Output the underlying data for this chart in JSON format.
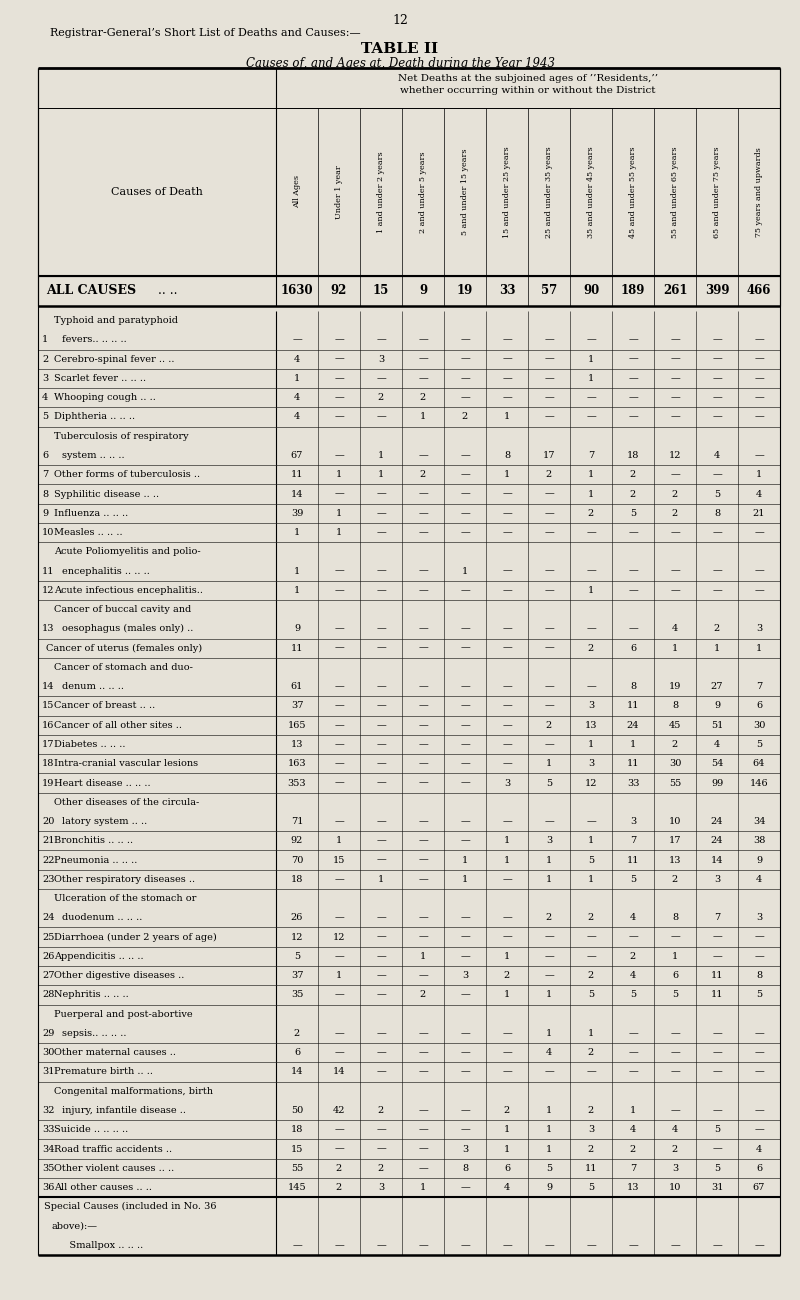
{
  "page_number": "12",
  "title_line1": "Registrar-General’s Short List of Deaths and Causes:—",
  "title_line2": "TABLE II",
  "title_line3": "Causes of, and Ages at, Death during the Year 1943",
  "col_headers": [
    "All Ages",
    "Under 1 year",
    "1 and under 2 years",
    "2 and under 5 years",
    "5 and under 15 years",
    "15 and under 25 years",
    "25 and under 35 years",
    "35 and under 45 years",
    "45 and under 55 years",
    "55 and under 65 years",
    "65 and under 75 years",
    "75 years and upwards"
  ],
  "all_causes": [
    "1630",
    "92",
    "15",
    "9",
    "19",
    "33",
    "57",
    "90",
    "189",
    "261",
    "399",
    "466"
  ],
  "rows": [
    {
      "num": "1",
      "label": [
        "Typhoid and paratyphoid",
        "fevers.. .. .. .."
      ],
      "data": [
        "—",
        "—",
        "—",
        "—",
        "—",
        "—",
        "—",
        "—",
        "—",
        "—",
        "—",
        "—"
      ],
      "data_line": 1
    },
    {
      "num": "2",
      "label": [
        "Cerebro-spinal fever .. .."
      ],
      "data": [
        "4",
        "—",
        "3",
        "—",
        "—",
        "—",
        "—",
        "1",
        "—",
        "—",
        "—",
        "—"
      ],
      "data_line": 0
    },
    {
      "num": "3",
      "label": [
        "Scarlet fever .. .. .."
      ],
      "data": [
        "1",
        "—",
        "—",
        "—",
        "—",
        "—",
        "—",
        "1",
        "—",
        "—",
        "—",
        "—"
      ],
      "data_line": 0
    },
    {
      "num": "4",
      "label": [
        "Whooping cough .. .."
      ],
      "data": [
        "4",
        "—",
        "2",
        "2",
        "—",
        "—",
        "—",
        "—",
        "—",
        "—",
        "—",
        "—"
      ],
      "data_line": 0
    },
    {
      "num": "5",
      "label": [
        "Diphtheria .. .. .."
      ],
      "data": [
        "4",
        "—",
        "—",
        "1",
        "2",
        "1",
        "—",
        "—",
        "—",
        "—",
        "—",
        "—"
      ],
      "data_line": 0
    },
    {
      "num": "6",
      "label": [
        "Tuberculosis of respiratory",
        "system .. .. .."
      ],
      "data": [
        "67",
        "—",
        "1",
        "—",
        "—",
        "8",
        "17",
        "7",
        "18",
        "12",
        "4",
        "—"
      ],
      "data_line": 1
    },
    {
      "num": "7",
      "label": [
        "Other forms of tuberculosis .."
      ],
      "data": [
        "11",
        "1",
        "1",
        "2",
        "—",
        "1",
        "2",
        "1",
        "2",
        "—",
        "—",
        "1"
      ],
      "data_line": 0
    },
    {
      "num": "8",
      "label": [
        "Syphilitic disease .. .."
      ],
      "data": [
        "14",
        "—",
        "—",
        "—",
        "—",
        "—",
        "—",
        "1",
        "2",
        "2",
        "5",
        "4"
      ],
      "data_line": 0
    },
    {
      "num": "9",
      "label": [
        "Influenza .. .. .."
      ],
      "data": [
        "39",
        "1",
        "—",
        "—",
        "—",
        "—",
        "—",
        "2",
        "5",
        "2",
        "8",
        "21"
      ],
      "data_line": 0
    },
    {
      "num": "10",
      "label": [
        "Measles .. .. .."
      ],
      "data": [
        "1",
        "1",
        "—",
        "—",
        "—",
        "—",
        "—",
        "—",
        "—",
        "—",
        "—",
        "—"
      ],
      "data_line": 0
    },
    {
      "num": "11",
      "label": [
        "Acute Poliomyelitis and polio-",
        "encephalitis .. .. .."
      ],
      "data": [
        "1",
        "—",
        "—",
        "—",
        "1",
        "—",
        "—",
        "—",
        "—",
        "—",
        "—",
        "—"
      ],
      "data_line": 1
    },
    {
      "num": "12",
      "label": [
        "Acute infectious encephalitis.."
      ],
      "data": [
        "1",
        "—",
        "—",
        "—",
        "—",
        "—",
        "—",
        "1",
        "—",
        "—",
        "—",
        "—"
      ],
      "data_line": 0
    },
    {
      "num": "13",
      "label": [
        "Cancer of buccal cavity and",
        "oesophagus (males only) .."
      ],
      "data": [
        "9",
        "—",
        "—",
        "—",
        "—",
        "—",
        "—",
        "—",
        "—",
        "4",
        "2",
        "3"
      ],
      "data_line": 1
    },
    {
      "num": "",
      "label": [
        "Cancer of uterus (females only)"
      ],
      "data": [
        "11",
        "—",
        "—",
        "—",
        "—",
        "—",
        "—",
        "2",
        "6",
        "1",
        "1",
        "1"
      ],
      "data_line": 0
    },
    {
      "num": "14",
      "label": [
        "Cancer of stomach and duo-",
        "denum .. .. .."
      ],
      "data": [
        "61",
        "—",
        "—",
        "—",
        "—",
        "—",
        "—",
        "—",
        "8",
        "19",
        "27",
        "7"
      ],
      "data_line": 1
    },
    {
      "num": "15",
      "label": [
        "Cancer of breast .. .."
      ],
      "data": [
        "37",
        "—",
        "—",
        "—",
        "—",
        "—",
        "—",
        "3",
        "11",
        "8",
        "9",
        "6"
      ],
      "data_line": 0
    },
    {
      "num": "16",
      "label": [
        "Cancer of all other sites .."
      ],
      "data": [
        "165",
        "—",
        "—",
        "—",
        "—",
        "—",
        "2",
        "13",
        "24",
        "45",
        "51",
        "30"
      ],
      "data_line": 0
    },
    {
      "num": "17",
      "label": [
        "Diabetes .. .. .."
      ],
      "data": [
        "13",
        "—",
        "—",
        "—",
        "—",
        "—",
        "—",
        "1",
        "1",
        "2",
        "4",
        "5"
      ],
      "data_line": 0
    },
    {
      "num": "18",
      "label": [
        "Intra-cranial vascular lesions"
      ],
      "data": [
        "163",
        "—",
        "—",
        "—",
        "—",
        "—",
        "1",
        "3",
        "11",
        "30",
        "54",
        "64"
      ],
      "data_line": 0
    },
    {
      "num": "19",
      "label": [
        "Heart disease .. .. .."
      ],
      "data": [
        "353",
        "—",
        "—",
        "—",
        "—",
        "3",
        "5",
        "12",
        "33",
        "55",
        "99",
        "146"
      ],
      "data_line": 0
    },
    {
      "num": "20",
      "label": [
        "Other diseases of the circula-",
        "latory system .. .."
      ],
      "data": [
        "71",
        "—",
        "—",
        "—",
        "—",
        "—",
        "—",
        "—",
        "3",
        "10",
        "24",
        "34"
      ],
      "data_line": 1
    },
    {
      "num": "21",
      "label": [
        "Bronchitis .. .. .."
      ],
      "data": [
        "92",
        "1",
        "—",
        "—",
        "—",
        "1",
        "3",
        "1",
        "7",
        "17",
        "24",
        "38"
      ],
      "data_line": 0
    },
    {
      "num": "22",
      "label": [
        "Pneumonia .. .. .."
      ],
      "data": [
        "70",
        "15",
        "—",
        "—",
        "1",
        "1",
        "1",
        "5",
        "11",
        "13",
        "14",
        "9"
      ],
      "data_line": 0
    },
    {
      "num": "23",
      "label": [
        "Other respiratory diseases .."
      ],
      "data": [
        "18",
        "—",
        "1",
        "—",
        "1",
        "—",
        "1",
        "1",
        "5",
        "2",
        "3",
        "4"
      ],
      "data_line": 0
    },
    {
      "num": "24",
      "label": [
        "Ulceration of the stomach or",
        "duodenum .. .. .."
      ],
      "data": [
        "26",
        "—",
        "—",
        "—",
        "—",
        "—",
        "2",
        "2",
        "4",
        "8",
        "7",
        "3"
      ],
      "data_line": 1
    },
    {
      "num": "25",
      "label": [
        "Diarrhoea (under 2 years of age)"
      ],
      "data": [
        "12",
        "12",
        "—",
        "—",
        "—",
        "—",
        "—",
        "—",
        "—",
        "—",
        "—",
        "—"
      ],
      "data_line": 0
    },
    {
      "num": "26",
      "label": [
        "Appendicitis .. .. .."
      ],
      "data": [
        "5",
        "—",
        "—",
        "1",
        "—",
        "1",
        "—",
        "—",
        "2",
        "1",
        "—",
        "—"
      ],
      "data_line": 0
    },
    {
      "num": "27",
      "label": [
        "Other digestive diseases .."
      ],
      "data": [
        "37",
        "1",
        "—",
        "—",
        "3",
        "2",
        "—",
        "2",
        "4",
        "6",
        "11",
        "8"
      ],
      "data_line": 0
    },
    {
      "num": "28",
      "label": [
        "Nephritis .. .. .."
      ],
      "data": [
        "35",
        "—",
        "—",
        "2",
        "—",
        "1",
        "1",
        "5",
        "5",
        "5",
        "11",
        "5"
      ],
      "data_line": 0
    },
    {
      "num": "29",
      "label": [
        "Puerperal and post-abortive",
        "sepsis.. .. .. .."
      ],
      "data": [
        "2",
        "—",
        "—",
        "—",
        "—",
        "—",
        "1",
        "1",
        "—",
        "—",
        "—",
        "—"
      ],
      "data_line": 1
    },
    {
      "num": "30",
      "label": [
        "Other maternal causes .."
      ],
      "data": [
        "6",
        "—",
        "—",
        "—",
        "—",
        "—",
        "4",
        "2",
        "—",
        "—",
        "—",
        "—"
      ],
      "data_line": 0
    },
    {
      "num": "31",
      "label": [
        "Premature birth .. .."
      ],
      "data": [
        "14",
        "14",
        "—",
        "—",
        "—",
        "—",
        "—",
        "—",
        "—",
        "—",
        "—",
        "—"
      ],
      "data_line": 0
    },
    {
      "num": "32",
      "label": [
        "Congenital malformations, birth",
        "injury, infantile disease .."
      ],
      "data": [
        "50",
        "42",
        "2",
        "—",
        "—",
        "2",
        "1",
        "2",
        "1",
        "—",
        "—",
        "—"
      ],
      "data_line": 1
    },
    {
      "num": "33",
      "label": [
        "Suicide .. .. .. .."
      ],
      "data": [
        "18",
        "—",
        "—",
        "—",
        "—",
        "1",
        "1",
        "3",
        "4",
        "4",
        "5",
        "—"
      ],
      "data_line": 0
    },
    {
      "num": "34",
      "label": [
        "Road traffic accidents .."
      ],
      "data": [
        "15",
        "—",
        "—",
        "—",
        "3",
        "1",
        "1",
        "2",
        "2",
        "2",
        "—",
        "4"
      ],
      "data_line": 0
    },
    {
      "num": "35",
      "label": [
        "Other violent causes .. .."
      ],
      "data": [
        "55",
        "2",
        "2",
        "—",
        "8",
        "6",
        "5",
        "11",
        "7",
        "3",
        "5",
        "6"
      ],
      "data_line": 0
    },
    {
      "num": "36",
      "label": [
        "All other causes .. .."
      ],
      "data": [
        "145",
        "2",
        "3",
        "1",
        "—",
        "4",
        "9",
        "5",
        "13",
        "10",
        "31",
        "67"
      ],
      "data_line": 0
    },
    {
      "num": "SC",
      "label": [
        "Special Causes (included in No. 36",
        "above):—",
        "   Smallpox .. .. .."
      ],
      "data": [
        "—",
        "—",
        "—",
        "—",
        "—",
        "—",
        "—",
        "—",
        "—",
        "—",
        "—",
        "—"
      ],
      "data_line": 2
    }
  ],
  "bg_color": "#e6e2d8",
  "text_color": "#000000"
}
